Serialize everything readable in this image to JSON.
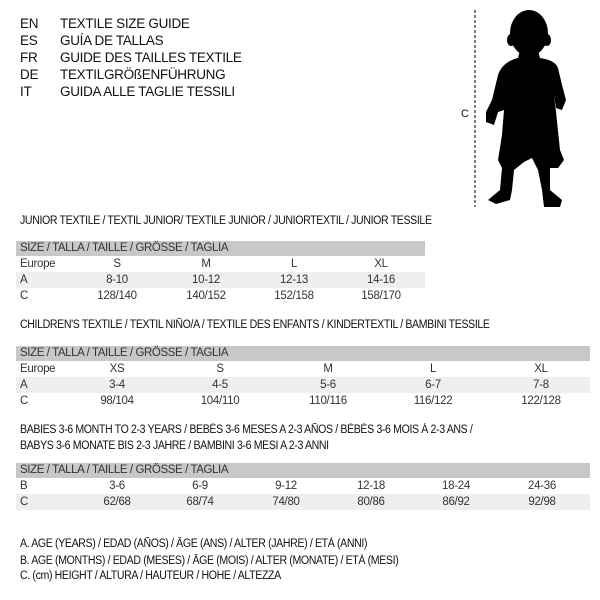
{
  "languages": [
    {
      "code": "EN",
      "text": "TEXTILE SIZE GUIDE"
    },
    {
      "code": "ES",
      "text": "GUÍA DE TALLAS"
    },
    {
      "code": "FR",
      "text": "GUIDE DES TAILLES TEXTILE"
    },
    {
      "code": "DE",
      "text": "TEXTILGRÖßENFÜHRUNG"
    },
    {
      "code": "IT",
      "text": "GUIDA ALLE TAGLIE TESSILI"
    }
  ],
  "figure": {
    "measure_label": "C",
    "icon": "baby-silhouette"
  },
  "colors": {
    "header": "#c8c8c8",
    "stripe": "#efefef"
  },
  "tables": [
    {
      "title": "JUNIOR TEXTILE / TEXTIL JUNIOR/ TEXTILE JUNIOR / JUNIORTEXTIL / JUNIOR TESSILE",
      "header": "SIZE / TALLA / TAILLE / GRÖSSE / TAGLIA",
      "rows": [
        {
          "label": "Europe",
          "values": [
            "S",
            "M",
            "L",
            "XL"
          ]
        },
        {
          "label": "A",
          "values": [
            "8-10",
            "10-12",
            "12-13",
            "14-16"
          ]
        },
        {
          "label": "C",
          "values": [
            "128/140",
            "140/152",
            "152/158",
            "158/170"
          ]
        }
      ]
    },
    {
      "title": "CHILDREN'S TEXTILE / TEXTIL NIÑO/A / TEXTILE DES ENFANTS / KINDERTEXTIL / BAMBINI TESSILE",
      "header": "SIZE / TALLA / TAILLE / GRÖSSE / TAGLIA",
      "rows": [
        {
          "label": "Europe",
          "values": [
            "XS",
            "S",
            "M",
            "L",
            "XL"
          ]
        },
        {
          "label": "A",
          "values": [
            "3-4",
            "4-5",
            "5-6",
            "6-7",
            "7-8"
          ]
        },
        {
          "label": "C",
          "values": [
            "98/104",
            "104/110",
            "110/116",
            "116/122",
            "122/128"
          ]
        }
      ]
    },
    {
      "title": "BABIES 3-6 MONTH TO 2-3 YEARS / BEBÉS 3-6 MESES A 2-3 AÑOS / BÉBÉS 3-6 MOIS À 2-3 ANS /",
      "title2": "BABYS 3-6 MONATE BIS 2-3 JAHRE / BAMBINI 3-6 MESI A 2-3 ANNI",
      "header": "SIZE / TALLA / TAILLE / GRÖSSE / TAGLIA",
      "rows": [
        {
          "label": "B",
          "values": [
            "3-6",
            "6-9",
            "9-12",
            "12-18",
            "18-24",
            "24-36"
          ]
        },
        {
          "label": "C",
          "values": [
            "62/68",
            "68/74",
            "74/80",
            "80/86",
            "86/92",
            "92/98"
          ]
        }
      ]
    }
  ],
  "legend": [
    "A. AGE (YEARS) / EDAD (AÑOS) / ÂGE (ANS) / ALTER (JAHRE) / ETÀ (ANNI)",
    "B. AGE (MONTHS) / EDAD (MESES) / ÂGE (MOIS) / ALTER (MONATE) / ETÀ (MESI)",
    "C. (cm) HEIGHT / ALTURA / HAUTEUR / HÖHE / ALTEZZA"
  ]
}
